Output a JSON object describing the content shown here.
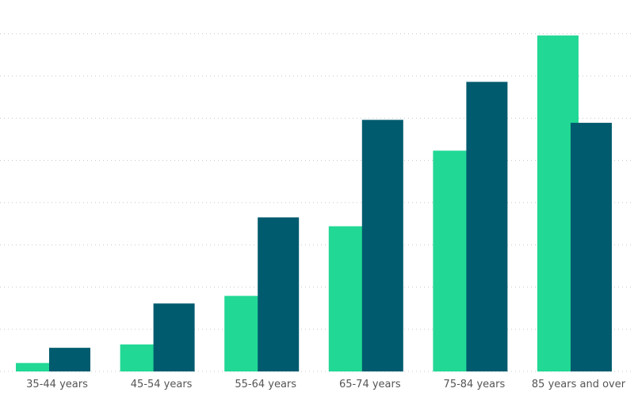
{
  "chart_data": {
    "type": "bar",
    "categories": [
      "35-44 years",
      "45-54 years",
      "55-64 years",
      "65-74 years",
      "75-84 years",
      "85 years and over"
    ],
    "series": [
      {
        "color": "#22d895",
        "values": [
          2,
          6.4,
          17.9,
          34.4,
          52.3,
          79.6
        ]
      },
      {
        "color": "#005b6e",
        "values": [
          5.6,
          16.1,
          36.5,
          59.6,
          68.6,
          58.9
        ]
      }
    ],
    "ylim": [
      0,
      85
    ],
    "grid": true,
    "legend": "none",
    "title": "",
    "xlabel": "",
    "ylabel": ""
  }
}
